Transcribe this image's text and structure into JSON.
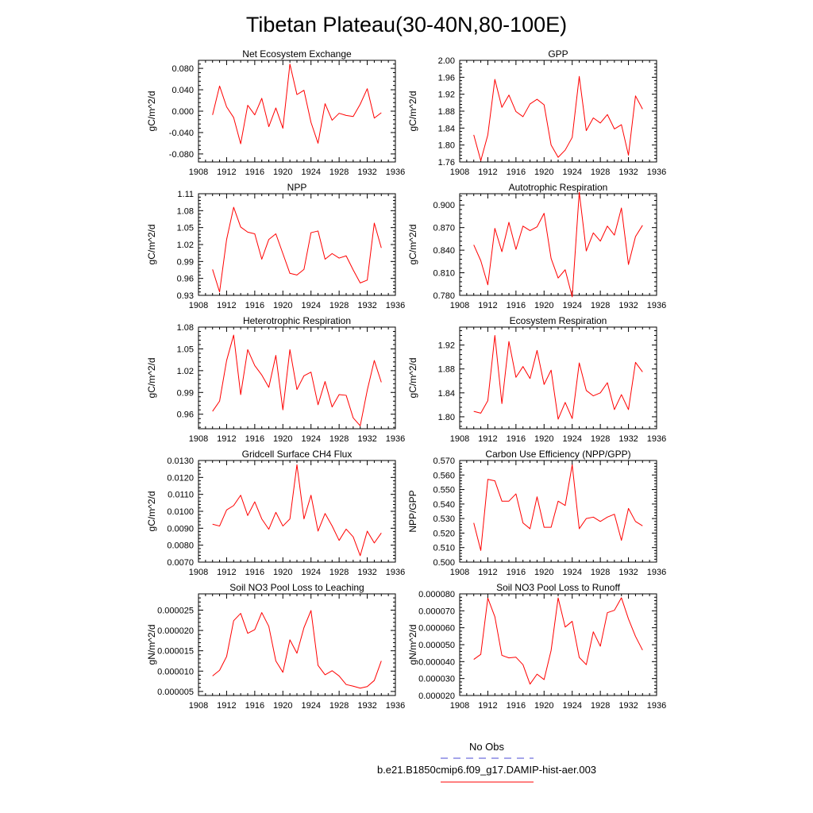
{
  "title": "Tibetan Plateau(30-40N,80-100E)",
  "legend": {
    "obs_label": "No Obs",
    "obs_color": "#4b4bd6",
    "model_label": "b.e21.B1850cmip6.f09_g17.DAMIP-hist-aer.003",
    "model_color": "#ff0000"
  },
  "chart_data": [
    {
      "type": "line",
      "title": "Net Ecosystem Exchange",
      "ylabel": "gC/m^2/d",
      "xlim": [
        1908,
        1936
      ],
      "ylim": [
        -0.095,
        0.095
      ],
      "xticks": [
        1908,
        1912,
        1916,
        1920,
        1924,
        1928,
        1932,
        1936
      ],
      "yticks": [
        -0.08,
        -0.04,
        0.0,
        0.04,
        0.08
      ],
      "ytick_labels": [
        "-0.080",
        "-0.040",
        "0.000",
        "0.040",
        "0.080"
      ],
      "x": [
        1910,
        1911,
        1912,
        1913,
        1914,
        1915,
        1916,
        1917,
        1918,
        1919,
        1920,
        1921,
        1922,
        1923,
        1924,
        1925,
        1926,
        1927,
        1928,
        1929,
        1930,
        1931,
        1932,
        1933,
        1934
      ],
      "series": [
        {
          "values": [
            -0.007,
            0.047,
            0.008,
            -0.012,
            -0.061,
            0.011,
            -0.007,
            0.024,
            -0.029,
            0.006,
            -0.032,
            0.088,
            0.031,
            0.039,
            -0.021,
            -0.06,
            0.014,
            -0.017,
            -0.004,
            -0.008,
            -0.01,
            0.013,
            0.042,
            -0.013,
            -0.003
          ],
          "color": "#ff0000"
        }
      ]
    },
    {
      "type": "line",
      "title": "GPP",
      "ylabel": "gC/m^2/d",
      "xlim": [
        1908,
        1936
      ],
      "ylim": [
        1.76,
        2.0
      ],
      "xticks": [
        1908,
        1912,
        1916,
        1920,
        1924,
        1928,
        1932,
        1936
      ],
      "yticks": [
        1.76,
        1.8,
        1.84,
        1.88,
        1.92,
        1.96,
        2.0
      ],
      "ytick_labels": [
        "1.76",
        "1.80",
        "1.84",
        "1.88",
        "1.92",
        "1.96",
        "2.00"
      ],
      "x": [
        1910,
        1911,
        1912,
        1913,
        1914,
        1915,
        1916,
        1917,
        1918,
        1919,
        1920,
        1921,
        1922,
        1923,
        1924,
        1925,
        1926,
        1927,
        1928,
        1929,
        1930,
        1931,
        1932,
        1933,
        1934
      ],
      "series": [
        {
          "values": [
            1.824,
            1.763,
            1.824,
            1.955,
            1.889,
            1.918,
            1.879,
            1.867,
            1.897,
            1.908,
            1.895,
            1.8,
            1.771,
            1.788,
            1.818,
            1.962,
            1.834,
            1.864,
            1.852,
            1.872,
            1.838,
            1.848,
            1.776,
            1.916,
            1.885
          ],
          "color": "#ff0000"
        }
      ]
    },
    {
      "type": "line",
      "title": "NPP",
      "ylabel": "gC/m^2/d",
      "xlim": [
        1908,
        1936
      ],
      "ylim": [
        0.93,
        1.11
      ],
      "xticks": [
        1908,
        1912,
        1916,
        1920,
        1924,
        1928,
        1932,
        1936
      ],
      "yticks": [
        0.93,
        0.96,
        0.99,
        1.02,
        1.05,
        1.08,
        1.11
      ],
      "ytick_labels": [
        "0.93",
        "0.96",
        "0.99",
        "1.02",
        "1.05",
        "1.08",
        "1.11"
      ],
      "x": [
        1910,
        1911,
        1912,
        1913,
        1914,
        1915,
        1916,
        1917,
        1918,
        1919,
        1920,
        1921,
        1922,
        1923,
        1924,
        1925,
        1926,
        1927,
        1928,
        1929,
        1930,
        1931,
        1932,
        1933,
        1934
      ],
      "series": [
        {
          "values": [
            0.976,
            0.936,
            1.029,
            1.086,
            1.051,
            1.042,
            1.039,
            0.994,
            1.029,
            1.039,
            1.004,
            0.969,
            0.966,
            0.976,
            1.041,
            1.044,
            0.994,
            1.004,
            0.996,
            1.0,
            0.975,
            0.952,
            0.957,
            1.058,
            1.014
          ],
          "color": "#ff0000"
        }
      ]
    },
    {
      "type": "line",
      "title": "Autotrophic Respiration",
      "ylabel": "gC/m^2/d",
      "xlim": [
        1908,
        1936
      ],
      "ylim": [
        0.78,
        0.915
      ],
      "xticks": [
        1908,
        1912,
        1916,
        1920,
        1924,
        1928,
        1932,
        1936
      ],
      "yticks": [
        0.78,
        0.81,
        0.84,
        0.87,
        0.9
      ],
      "ytick_labels": [
        "0.780",
        "0.810",
        "0.840",
        "0.870",
        "0.900"
      ],
      "x": [
        1910,
        1911,
        1912,
        1913,
        1914,
        1915,
        1916,
        1917,
        1918,
        1919,
        1920,
        1921,
        1922,
        1923,
        1924,
        1925,
        1926,
        1927,
        1928,
        1929,
        1930,
        1931,
        1932,
        1933,
        1934
      ],
      "series": [
        {
          "values": [
            0.847,
            0.826,
            0.794,
            0.869,
            0.838,
            0.877,
            0.841,
            0.872,
            0.866,
            0.871,
            0.889,
            0.829,
            0.803,
            0.814,
            0.778,
            0.917,
            0.839,
            0.863,
            0.852,
            0.872,
            0.86,
            0.896,
            0.821,
            0.858,
            0.873
          ],
          "color": "#ff0000"
        }
      ]
    },
    {
      "type": "line",
      "title": "Heterotrophic Respiration",
      "ylabel": "gC/m^2/d",
      "xlim": [
        1908,
        1936
      ],
      "ylim": [
        0.94,
        1.08
      ],
      "xticks": [
        1908,
        1912,
        1916,
        1920,
        1924,
        1928,
        1932,
        1936
      ],
      "yticks": [
        0.96,
        0.99,
        1.02,
        1.05,
        1.08
      ],
      "ytick_labels": [
        "0.96",
        "0.99",
        "1.02",
        "1.05",
        "1.08"
      ],
      "x": [
        1910,
        1911,
        1912,
        1913,
        1914,
        1915,
        1916,
        1917,
        1918,
        1919,
        1920,
        1921,
        1922,
        1923,
        1924,
        1925,
        1926,
        1927,
        1928,
        1929,
        1930,
        1931,
        1932,
        1933,
        1934
      ],
      "series": [
        {
          "values": [
            0.964,
            0.978,
            1.034,
            1.069,
            0.987,
            1.049,
            1.027,
            1.014,
            0.997,
            1.041,
            0.966,
            1.049,
            0.994,
            1.013,
            1.018,
            0.973,
            1.005,
            0.97,
            0.987,
            0.986,
            0.955,
            0.944,
            0.993,
            1.034,
            1.004
          ],
          "color": "#ff0000"
        }
      ]
    },
    {
      "type": "line",
      "title": "Ecosystem Respiration",
      "ylabel": "gC/m^2/d",
      "xlim": [
        1908,
        1936
      ],
      "ylim": [
        1.78,
        1.95
      ],
      "xticks": [
        1908,
        1912,
        1916,
        1920,
        1924,
        1928,
        1932,
        1936
      ],
      "yticks": [
        1.8,
        1.84,
        1.88,
        1.92
      ],
      "ytick_labels": [
        "1.80",
        "1.84",
        "1.88",
        "1.92"
      ],
      "x": [
        1910,
        1911,
        1912,
        1913,
        1914,
        1915,
        1916,
        1917,
        1918,
        1919,
        1920,
        1921,
        1922,
        1923,
        1924,
        1925,
        1926,
        1927,
        1928,
        1929,
        1930,
        1931,
        1932,
        1933,
        1934
      ],
      "series": [
        {
          "values": [
            1.809,
            1.806,
            1.827,
            1.936,
            1.822,
            1.926,
            1.866,
            1.884,
            1.864,
            1.911,
            1.854,
            1.878,
            1.796,
            1.824,
            1.797,
            1.89,
            1.844,
            1.835,
            1.84,
            1.857,
            1.812,
            1.837,
            1.812,
            1.891,
            1.875
          ],
          "color": "#ff0000"
        }
      ]
    },
    {
      "type": "line",
      "title": "Gridcell Surface CH4 Flux",
      "ylabel": "gC/m^2/d",
      "xlim": [
        1908,
        1936
      ],
      "ylim": [
        0.007,
        0.013
      ],
      "xticks": [
        1908,
        1912,
        1916,
        1920,
        1924,
        1928,
        1932,
        1936
      ],
      "yticks": [
        0.007,
        0.008,
        0.009,
        0.01,
        0.011,
        0.012,
        0.013
      ],
      "ytick_labels": [
        "0.0070",
        "0.0080",
        "0.0090",
        "0.0100",
        "0.0110",
        "0.0120",
        "0.0130"
      ],
      "x": [
        1910,
        1911,
        1912,
        1913,
        1914,
        1915,
        1916,
        1917,
        1918,
        1919,
        1920,
        1921,
        1922,
        1923,
        1924,
        1925,
        1926,
        1927,
        1928,
        1929,
        1930,
        1931,
        1932,
        1933,
        1934
      ],
      "series": [
        {
          "values": [
            0.00924,
            0.00913,
            0.01008,
            0.01034,
            0.01095,
            0.00975,
            0.01056,
            0.00955,
            0.00894,
            0.00994,
            0.00913,
            0.00955,
            0.01275,
            0.00955,
            0.01095,
            0.00883,
            0.00987,
            0.00914,
            0.00828,
            0.00895,
            0.00849,
            0.00738,
            0.00883,
            0.00813,
            0.00872
          ],
          "color": "#ff0000"
        }
      ]
    },
    {
      "type": "line",
      "title": "Carbon Use Efficiency (NPP/GPP)",
      "ylabel": "NPP/GPP",
      "xlim": [
        1908,
        1936
      ],
      "ylim": [
        0.5,
        0.57
      ],
      "xticks": [
        1908,
        1912,
        1916,
        1920,
        1924,
        1928,
        1932,
        1936
      ],
      "yticks": [
        0.5,
        0.51,
        0.52,
        0.53,
        0.54,
        0.55,
        0.56,
        0.57
      ],
      "ytick_labels": [
        "0.500",
        "0.510",
        "0.520",
        "0.530",
        "0.540",
        "0.550",
        "0.560",
        "0.570"
      ],
      "x": [
        1910,
        1911,
        1912,
        1913,
        1914,
        1915,
        1916,
        1917,
        1918,
        1919,
        1920,
        1921,
        1922,
        1923,
        1924,
        1925,
        1926,
        1927,
        1928,
        1929,
        1930,
        1931,
        1932,
        1933,
        1934
      ],
      "series": [
        {
          "values": [
            0.527,
            0.508,
            0.557,
            0.556,
            0.542,
            0.542,
            0.547,
            0.527,
            0.523,
            0.545,
            0.524,
            0.524,
            0.542,
            0.539,
            0.567,
            0.523,
            0.53,
            0.531,
            0.528,
            0.531,
            0.533,
            0.515,
            0.537,
            0.528,
            0.525
          ],
          "color": "#ff0000"
        }
      ]
    },
    {
      "type": "line",
      "title": "Soil NO3 Pool Loss to Leaching",
      "ylabel": "gN/m^2/d",
      "xlim": [
        1908,
        1936
      ],
      "ylim": [
        4e-06,
        2.9e-05
      ],
      "xticks": [
        1908,
        1912,
        1916,
        1920,
        1924,
        1928,
        1932,
        1936
      ],
      "yticks": [
        5e-06,
        1e-05,
        1.5e-05,
        2e-05,
        2.5e-05
      ],
      "ytick_labels": [
        "0.000005",
        "0.000010",
        "0.000015",
        "0.000020",
        "0.000025"
      ],
      "x": [
        1910,
        1911,
        1912,
        1913,
        1914,
        1915,
        1916,
        1917,
        1918,
        1919,
        1920,
        1921,
        1922,
        1923,
        1924,
        1925,
        1926,
        1927,
        1928,
        1929,
        1930,
        1931,
        1932,
        1933,
        1934
      ],
      "series": [
        {
          "values": [
            8.8e-06,
            1.02e-05,
            1.36e-05,
            2.24e-05,
            2.42e-05,
            1.93e-05,
            2.02e-05,
            2.44e-05,
            2.1e-05,
            1.25e-05,
            9.7e-06,
            1.77e-05,
            1.44e-05,
            2.07e-05,
            2.49e-05,
            1.14e-05,
            9.1e-06,
            1.01e-05,
            8.8e-06,
            6.7e-06,
            6.3e-06,
            5.8e-06,
            6.2e-06,
            7.7e-06,
            1.25e-05
          ],
          "color": "#ff0000"
        }
      ]
    },
    {
      "type": "line",
      "title": "Soil NO3 Pool Loss to Runoff",
      "ylabel": "gN/m^2/d",
      "xlim": [
        1908,
        1936
      ],
      "ylim": [
        2e-05,
        8e-05
      ],
      "xticks": [
        1908,
        1912,
        1916,
        1920,
        1924,
        1928,
        1932,
        1936
      ],
      "yticks": [
        2e-05,
        3e-05,
        4e-05,
        5e-05,
        6e-05,
        7e-05,
        8e-05
      ],
      "ytick_labels": [
        "0.000020",
        "0.000030",
        "0.000040",
        "0.000050",
        "0.000060",
        "0.000070",
        "0.000080"
      ],
      "x": [
        1910,
        1911,
        1912,
        1913,
        1914,
        1915,
        1916,
        1917,
        1918,
        1919,
        1920,
        1921,
        1922,
        1923,
        1924,
        1925,
        1926,
        1927,
        1928,
        1929,
        1930,
        1931,
        1932,
        1933,
        1934
      ],
      "series": [
        {
          "values": [
            4.13e-05,
            4.43e-05,
            7.75e-05,
            6.65e-05,
            4.37e-05,
            4.22e-05,
            4.26e-05,
            3.82e-05,
            2.67e-05,
            3.26e-05,
            2.94e-05,
            4.66e-05,
            7.76e-05,
            6.04e-05,
            6.38e-05,
            4.25e-05,
            3.82e-05,
            5.76e-05,
            4.91e-05,
            6.89e-05,
            7.03e-05,
            7.77e-05,
            6.52e-05,
            5.49e-05,
            4.68e-05
          ],
          "color": "#ff0000"
        }
      ]
    }
  ]
}
